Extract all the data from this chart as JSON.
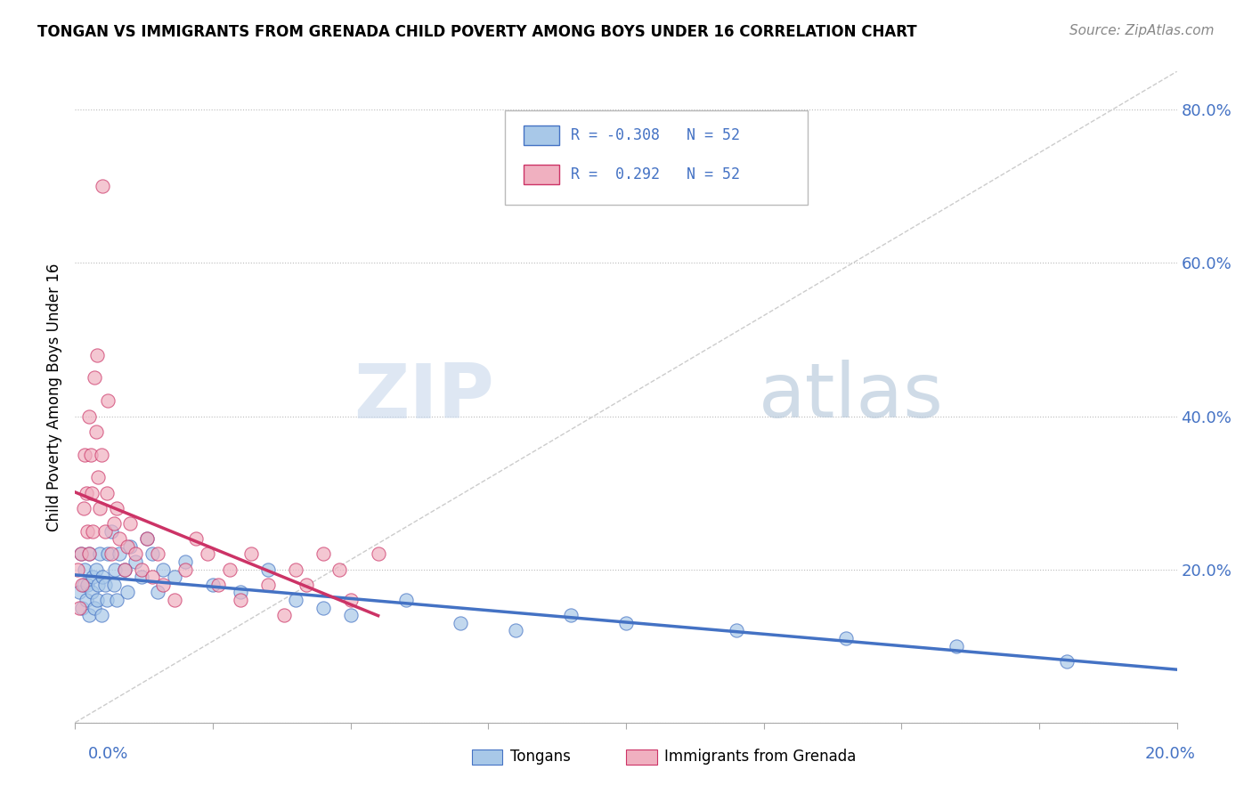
{
  "title": "TONGAN VS IMMIGRANTS FROM GRENADA CHILD POVERTY AMONG BOYS UNDER 16 CORRELATION CHART",
  "source": "Source: ZipAtlas.com",
  "ylabel": "Child Poverty Among Boys Under 16",
  "tongans_R": -0.308,
  "grenada_R": 0.292,
  "N": 52,
  "blue_color": "#a8c8e8",
  "pink_color": "#f0b0c0",
  "blue_line_color": "#4472c4",
  "pink_line_color": "#c0404080",
  "pink_line_solid": "#cc3366",
  "diagonal_color": "#cccccc",
  "watermark_color": "#ccd8e8",
  "xlim": [
    0.0,
    0.2
  ],
  "ylim": [
    0.0,
    0.85
  ],
  "tongans_x": [
    0.0008,
    0.001,
    0.0012,
    0.0015,
    0.0018,
    0.002,
    0.0022,
    0.0025,
    0.0025,
    0.003,
    0.0032,
    0.0035,
    0.0038,
    0.004,
    0.0042,
    0.0045,
    0.0048,
    0.005,
    0.0055,
    0.0058,
    0.006,
    0.0065,
    0.007,
    0.0072,
    0.0075,
    0.008,
    0.009,
    0.0095,
    0.01,
    0.011,
    0.012,
    0.013,
    0.014,
    0.015,
    0.016,
    0.018,
    0.02,
    0.025,
    0.03,
    0.035,
    0.04,
    0.045,
    0.05,
    0.06,
    0.07,
    0.08,
    0.09,
    0.1,
    0.12,
    0.14,
    0.16,
    0.18
  ],
  "tongans_y": [
    0.17,
    0.22,
    0.15,
    0.18,
    0.2,
    0.16,
    0.18,
    0.14,
    0.22,
    0.17,
    0.19,
    0.15,
    0.2,
    0.16,
    0.18,
    0.22,
    0.14,
    0.19,
    0.18,
    0.16,
    0.22,
    0.25,
    0.18,
    0.2,
    0.16,
    0.22,
    0.2,
    0.17,
    0.23,
    0.21,
    0.19,
    0.24,
    0.22,
    0.17,
    0.2,
    0.19,
    0.21,
    0.18,
    0.17,
    0.2,
    0.16,
    0.15,
    0.14,
    0.16,
    0.13,
    0.12,
    0.14,
    0.13,
    0.12,
    0.11,
    0.1,
    0.08
  ],
  "grenada_x": [
    0.0005,
    0.0008,
    0.001,
    0.0012,
    0.0015,
    0.0018,
    0.002,
    0.0022,
    0.0025,
    0.0025,
    0.0028,
    0.003,
    0.0032,
    0.0035,
    0.0038,
    0.004,
    0.0042,
    0.0045,
    0.0048,
    0.005,
    0.0055,
    0.0058,
    0.006,
    0.0065,
    0.007,
    0.0075,
    0.008,
    0.009,
    0.0095,
    0.01,
    0.011,
    0.012,
    0.013,
    0.014,
    0.015,
    0.016,
    0.018,
    0.02,
    0.022,
    0.024,
    0.026,
    0.028,
    0.03,
    0.032,
    0.035,
    0.038,
    0.04,
    0.042,
    0.045,
    0.048,
    0.05,
    0.055
  ],
  "grenada_y": [
    0.2,
    0.15,
    0.22,
    0.18,
    0.28,
    0.35,
    0.3,
    0.25,
    0.4,
    0.22,
    0.35,
    0.3,
    0.25,
    0.45,
    0.38,
    0.48,
    0.32,
    0.28,
    0.35,
    0.7,
    0.25,
    0.3,
    0.42,
    0.22,
    0.26,
    0.28,
    0.24,
    0.2,
    0.23,
    0.26,
    0.22,
    0.2,
    0.24,
    0.19,
    0.22,
    0.18,
    0.16,
    0.2,
    0.24,
    0.22,
    0.18,
    0.2,
    0.16,
    0.22,
    0.18,
    0.14,
    0.2,
    0.18,
    0.22,
    0.2,
    0.16,
    0.22
  ]
}
